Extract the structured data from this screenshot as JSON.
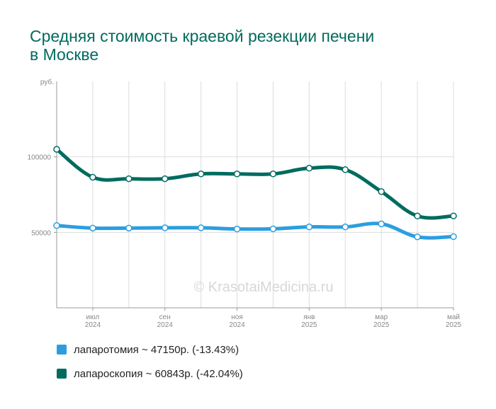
{
  "title_lines": [
    "Средняя стоимость краевой резекции печени",
    "в Москве"
  ],
  "chart_data": {
    "type": "line",
    "ylabel": "руб.",
    "ylim": [
      0,
      150000
    ],
    "yticks": [
      50000,
      100000
    ],
    "ytick_labels": [
      "50000",
      "100000"
    ],
    "x": [
      "2024-06",
      "2024-07",
      "2024-08",
      "2024-09",
      "2024-10",
      "2024-11",
      "2024-12",
      "2025-01",
      "2025-02",
      "2025-03",
      "2025-04",
      "2025-05"
    ],
    "xtick_labels": [
      {
        "x": "2024-07",
        "lines": [
          "июл",
          "2024"
        ]
      },
      {
        "x": "2024-09",
        "lines": [
          "сен",
          "2024"
        ]
      },
      {
        "x": "2024-11",
        "lines": [
          "ноя",
          "2024"
        ]
      },
      {
        "x": "2025-01",
        "lines": [
          "янв",
          "2025"
        ]
      },
      {
        "x": "2025-03",
        "lines": [
          "мар",
          "2025"
        ]
      },
      {
        "x": "2025-05",
        "lines": [
          "май",
          "2025"
        ]
      }
    ],
    "grid": true,
    "watermark": "© KrasotaiMedicina.ru",
    "series": [
      {
        "name": "лапаротомия",
        "color": "#2b9ee0",
        "values": [
          54500,
          52800,
          52800,
          53000,
          53000,
          52200,
          52300,
          53600,
          53600,
          55600,
          47000,
          47150
        ]
      },
      {
        "name": "лапароскопия",
        "color": "#006b5f",
        "values": [
          105000,
          86500,
          85500,
          85500,
          88700,
          88700,
          88700,
          92500,
          91500,
          77000,
          60800,
          60843
        ]
      }
    ]
  },
  "legend": [
    {
      "label": "лапаротомия ~ 47150р. (-13.43%)",
      "color": "#2b9ee0"
    },
    {
      "label": "лапароскопия ~ 60843р. (-42.04%)",
      "color": "#006b5f"
    }
  ]
}
